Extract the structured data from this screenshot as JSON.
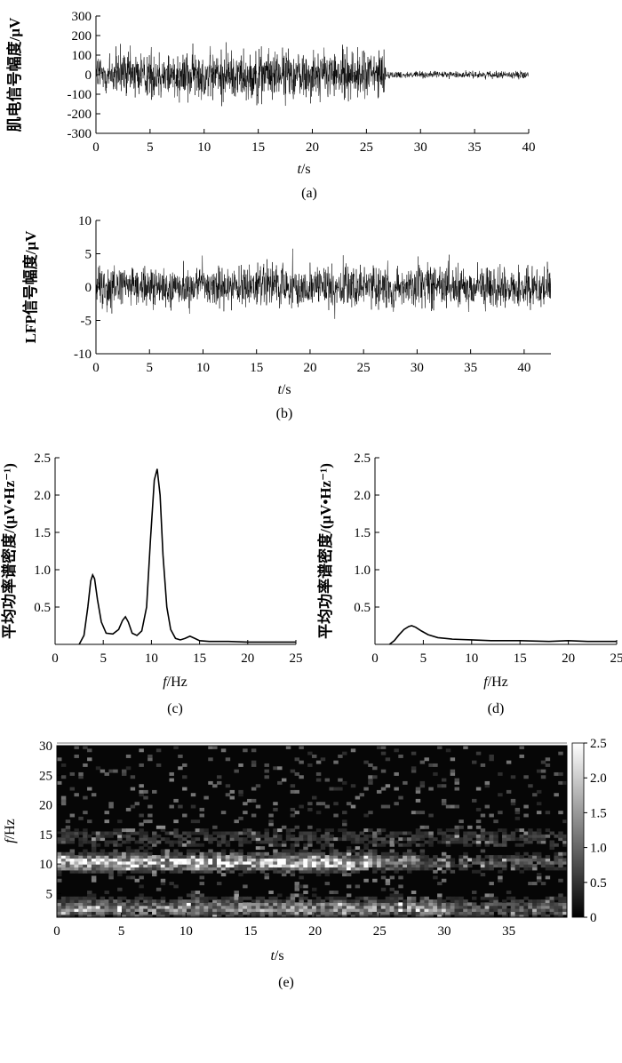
{
  "chart_data": [
    {
      "id": "a",
      "type": "line",
      "caption": "(a)",
      "ylabel": "肌电信号幅度/μV",
      "xlabel_var": "t",
      "xlabel_unit": "/s",
      "xlim": [
        0,
        40
      ],
      "ylim": [
        -300,
        300
      ],
      "xticks": [
        0,
        5,
        10,
        15,
        20,
        25,
        30,
        35,
        40
      ],
      "yticks": [
        300,
        200,
        100,
        0,
        -100,
        -200,
        -300
      ],
      "segments": [
        {
          "t_start": 0,
          "t_end": 26.8,
          "amplitude": 180
        },
        {
          "t_start": 26.8,
          "t_end": 40,
          "amplitude": 25
        }
      ]
    },
    {
      "id": "b",
      "type": "line",
      "caption": "(b)",
      "ylabel": "LFP信号幅度/μV",
      "xlabel_var": "t",
      "xlabel_unit": "/s",
      "xlim": [
        0,
        42.5
      ],
      "ylim": [
        -10,
        10
      ],
      "xticks": [
        0,
        5,
        10,
        15,
        20,
        25,
        30,
        35,
        40
      ],
      "yticks": [
        10,
        5,
        0,
        -5,
        -10
      ],
      "segments": [
        {
          "t_start": 0,
          "t_end": 42.5,
          "amplitude": 4.5
        }
      ]
    },
    {
      "id": "c",
      "type": "line",
      "caption": "(c)",
      "ylabel": "平均功率谱密度/(μV•Hz⁻¹)",
      "xlabel_var": "f",
      "xlabel_unit": "/Hz",
      "xlim": [
        0,
        25
      ],
      "ylim": [
        0,
        2.5
      ],
      "xticks": [
        0,
        5,
        10,
        15,
        20,
        25
      ],
      "yticks": [
        2.5,
        2.0,
        1.5,
        1.0,
        0.5
      ],
      "x": [
        2.5,
        3.0,
        3.4,
        3.7,
        3.9,
        4.1,
        4.4,
        4.8,
        5.3,
        6.0,
        6.6,
        7.0,
        7.3,
        7.6,
        8.0,
        8.5,
        9.0,
        9.5,
        9.9,
        10.3,
        10.6,
        10.9,
        11.2,
        11.6,
        12.0,
        12.5,
        13.0,
        13.5,
        14.0,
        14.5,
        15.0,
        16.0,
        18.0,
        20.0,
        22.0,
        24.0,
        25.0
      ],
      "y": [
        0.0,
        0.12,
        0.5,
        0.85,
        0.93,
        0.88,
        0.6,
        0.3,
        0.15,
        0.14,
        0.2,
        0.32,
        0.37,
        0.3,
        0.15,
        0.12,
        0.18,
        0.5,
        1.4,
        2.2,
        2.35,
        2.0,
        1.2,
        0.5,
        0.2,
        0.08,
        0.06,
        0.08,
        0.11,
        0.08,
        0.05,
        0.04,
        0.04,
        0.03,
        0.03,
        0.03,
        0.03
      ]
    },
    {
      "id": "d",
      "type": "line",
      "caption": "(d)",
      "ylabel": "平均功率谱密度/(μV•Hz⁻¹)",
      "xlabel_var": "f",
      "xlabel_unit": "/Hz",
      "xlim": [
        0,
        25
      ],
      "ylim": [
        0,
        2.5
      ],
      "xticks": [
        0,
        5,
        10,
        15,
        20,
        25
      ],
      "yticks": [
        2.5,
        2.0,
        1.5,
        1.0,
        0.5
      ],
      "x": [
        1.5,
        2.0,
        2.5,
        3.0,
        3.5,
        3.8,
        4.2,
        4.8,
        5.5,
        6.5,
        8.0,
        10.0,
        12.0,
        15.0,
        18.0,
        20.0,
        22.0,
        25.0
      ],
      "y": [
        0.0,
        0.05,
        0.13,
        0.2,
        0.24,
        0.25,
        0.23,
        0.18,
        0.13,
        0.09,
        0.07,
        0.06,
        0.05,
        0.05,
        0.04,
        0.05,
        0.04,
        0.04
      ]
    },
    {
      "id": "e",
      "type": "heatmap",
      "caption": "(e)",
      "ylabel_var": "f",
      "ylabel_unit": "/Hz",
      "xlabel_var": "t",
      "xlabel_unit": "/s",
      "xlim": [
        0,
        39.5
      ],
      "ylim": [
        1,
        30
      ],
      "xticks": [
        0,
        5,
        10,
        15,
        20,
        25,
        30,
        35
      ],
      "yticks": [
        30,
        25,
        20,
        15,
        10,
        5
      ],
      "colorbar_range": [
        0,
        2.5
      ],
      "colorbar_ticks": [
        "2.5",
        "2.0",
        "1.5",
        "1.0",
        "0.5",
        "0"
      ],
      "colormap": "grayscale"
    }
  ]
}
